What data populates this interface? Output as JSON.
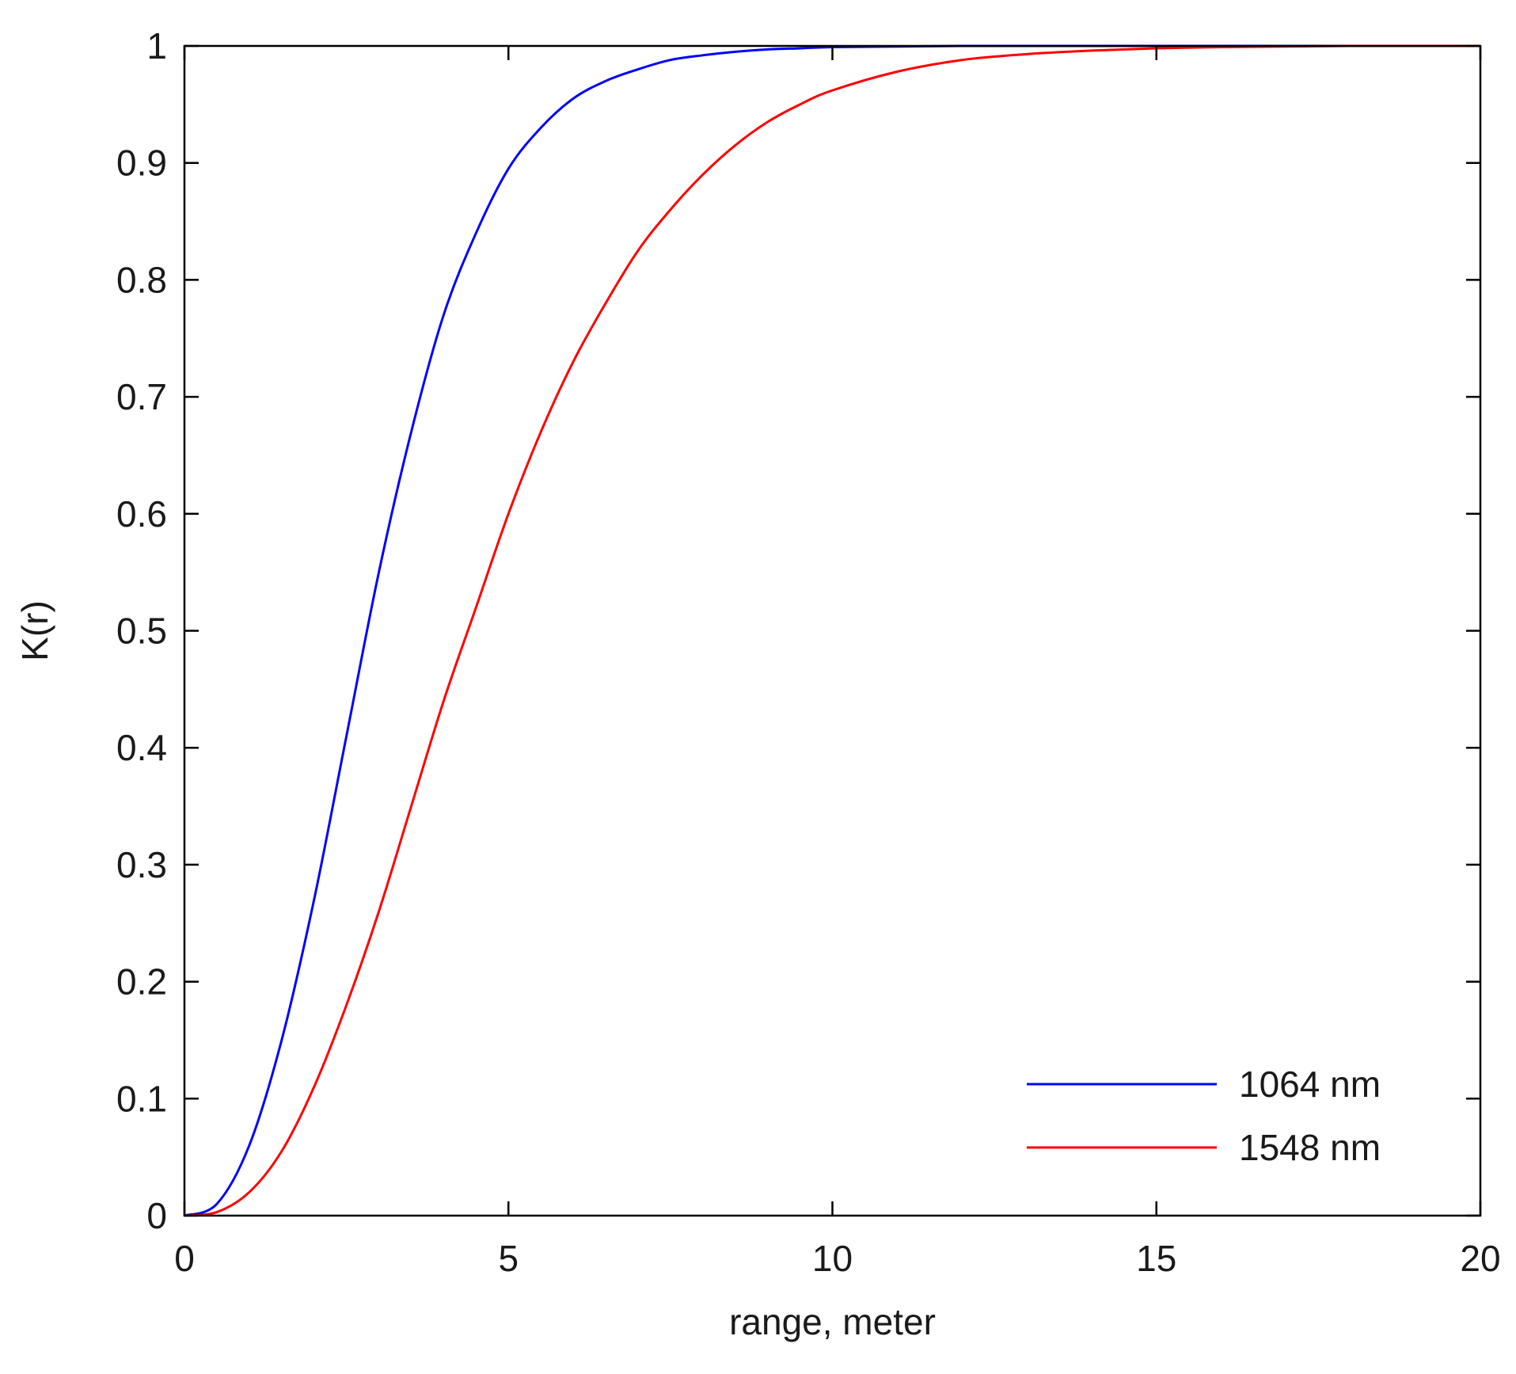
{
  "chart_data": {
    "type": "line",
    "title": "",
    "xlabel": "range, meter",
    "ylabel": "K(r)",
    "xlim": [
      0,
      20
    ],
    "ylim": [
      0,
      1
    ],
    "xticks": [
      0,
      5,
      10,
      15,
      20
    ],
    "yticks": [
      0,
      0.1,
      0.2,
      0.3,
      0.4,
      0.5,
      0.6,
      0.7,
      0.8,
      0.9,
      1
    ],
    "xtick_labels": [
      "0",
      "5",
      "10",
      "15",
      "20"
    ],
    "ytick_labels": [
      "0",
      "0.1",
      "0.2",
      "0.3",
      "0.4",
      "0.5",
      "0.6",
      "0.7",
      "0.8",
      "0.9",
      "1"
    ],
    "grid": false,
    "legend_position": "bottom-right",
    "series": [
      {
        "name": "1064 nm",
        "color": "#0000ff",
        "x": [
          0,
          0.5,
          1,
          1.5,
          2,
          2.5,
          3,
          3.5,
          4,
          4.5,
          5,
          5.5,
          6,
          6.5,
          7,
          7.5,
          8,
          8.5,
          9,
          9.5,
          10,
          11,
          12,
          13,
          14,
          15,
          16,
          17,
          18,
          19,
          20
        ],
        "y": [
          0,
          0.01,
          0.06,
          0.15,
          0.27,
          0.41,
          0.55,
          0.67,
          0.77,
          0.84,
          0.895,
          0.93,
          0.955,
          0.97,
          0.98,
          0.988,
          0.992,
          0.995,
          0.997,
          0.998,
          0.999,
          0.9995,
          1,
          1,
          1,
          1,
          1,
          1,
          1,
          1,
          1
        ]
      },
      {
        "name": "1548 nm",
        "color": "#ff0000",
        "x": [
          0,
          0.5,
          1,
          1.5,
          2,
          2.5,
          3,
          3.5,
          4,
          4.5,
          5,
          5.5,
          6,
          6.5,
          7,
          7.5,
          8,
          8.5,
          9,
          9.5,
          10,
          11,
          12,
          13,
          14,
          15,
          16,
          17,
          18,
          19,
          20
        ],
        "y": [
          0,
          0.003,
          0.02,
          0.055,
          0.11,
          0.18,
          0.26,
          0.35,
          0.44,
          0.52,
          0.6,
          0.67,
          0.73,
          0.78,
          0.825,
          0.86,
          0.89,
          0.915,
          0.935,
          0.95,
          0.962,
          0.978,
          0.988,
          0.993,
          0.996,
          0.998,
          0.999,
          0.9995,
          1,
          1,
          1
        ]
      }
    ]
  }
}
